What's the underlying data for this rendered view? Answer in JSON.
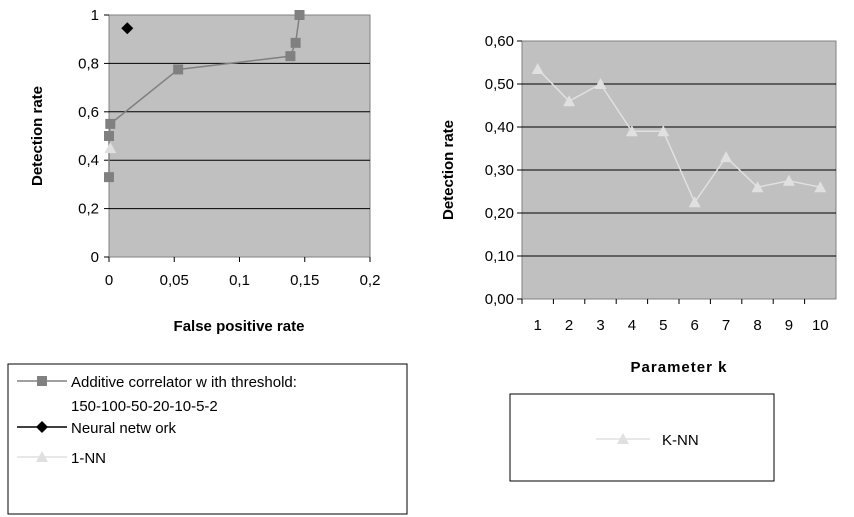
{
  "chart_data": [
    {
      "type": "scatter",
      "xlabel": "False positive rate",
      "ylabel": "Detection rate",
      "xlim": [
        0,
        0.2
      ],
      "ylim": [
        0,
        1
      ],
      "x_ticks": [
        0,
        0.05,
        0.1,
        0.15,
        0.2
      ],
      "x_tick_labels": [
        "0",
        "0,05",
        "0,1",
        "0,15",
        "0,2"
      ],
      "y_ticks": [
        0,
        0.2,
        0.4,
        0.6,
        0.8,
        1
      ],
      "y_tick_labels": [
        "0",
        "0,2",
        "0,4",
        "0,6",
        "0,8",
        "1"
      ],
      "legend_position": "bottom",
      "series": [
        {
          "name_lines": [
            "Additive correlator w ith threshold:",
            "150-100-50-20-10-5-2"
          ],
          "marker": "square",
          "line": true,
          "color": "#808080",
          "points": [
            {
              "x": 0.0,
              "y": 0.33
            },
            {
              "x": 0.0,
              "y": 0.5
            },
            {
              "x": 0.001,
              "y": 0.55
            },
            {
              "x": 0.053,
              "y": 0.775
            },
            {
              "x": 0.139,
              "y": 0.83
            },
            {
              "x": 0.143,
              "y": 0.885
            },
            {
              "x": 0.146,
              "y": 1.0
            }
          ]
        },
        {
          "name_lines": [
            "Neural netw ork"
          ],
          "marker": "diamond",
          "line": false,
          "color": "#000000",
          "points": [
            {
              "x": 0.014,
              "y": 0.945
            }
          ]
        },
        {
          "name_lines": [
            "1-NN"
          ],
          "marker": "triangle",
          "line": false,
          "color": "#e0e0e0",
          "points": [
            {
              "x": 0.001,
              "y": 0.45
            }
          ]
        }
      ]
    },
    {
      "type": "line",
      "xlabel": "Parameter k",
      "ylabel": "Detection rate",
      "ylim": [
        0,
        0.6
      ],
      "categories": [
        "1",
        "2",
        "3",
        "4",
        "5",
        "6",
        "7",
        "8",
        "9",
        "10"
      ],
      "y_ticks": [
        0,
        0.1,
        0.2,
        0.3,
        0.4,
        0.5,
        0.6
      ],
      "y_tick_labels": [
        "0,00",
        "0,10",
        "0,20",
        "0,30",
        "0,40",
        "0,50",
        "0,60"
      ],
      "legend_position": "bottom",
      "series": [
        {
          "name": "K-NN",
          "marker": "triangle",
          "color": "#e0e0e0",
          "values": [
            0.535,
            0.46,
            0.5,
            0.39,
            0.39,
            0.225,
            0.33,
            0.26,
            0.275,
            0.26
          ]
        }
      ]
    }
  ]
}
